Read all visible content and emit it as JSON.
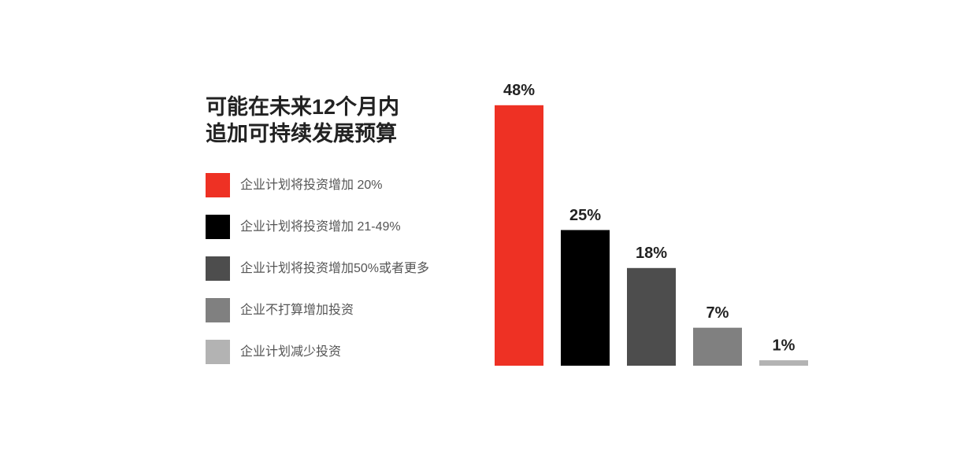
{
  "chart_data": {
    "type": "bar",
    "title": [
      "可能在未来12个月内",
      "追加可持续发展预算"
    ],
    "categories": [
      "企业计划将投资增加 20%",
      "企业计划将投资增加 21-49%",
      "企业计划将投资增加50%或者更多",
      "企业不打算增加投资",
      "企业计划减少投资"
    ],
    "values": [
      48,
      25,
      18,
      7,
      1
    ],
    "value_labels": [
      "48%",
      "25%",
      "18%",
      "7%",
      "1%"
    ],
    "colors": [
      "#ee3124",
      "#000000",
      "#4d4d4d",
      "#808080",
      "#b3b3b3"
    ]
  }
}
